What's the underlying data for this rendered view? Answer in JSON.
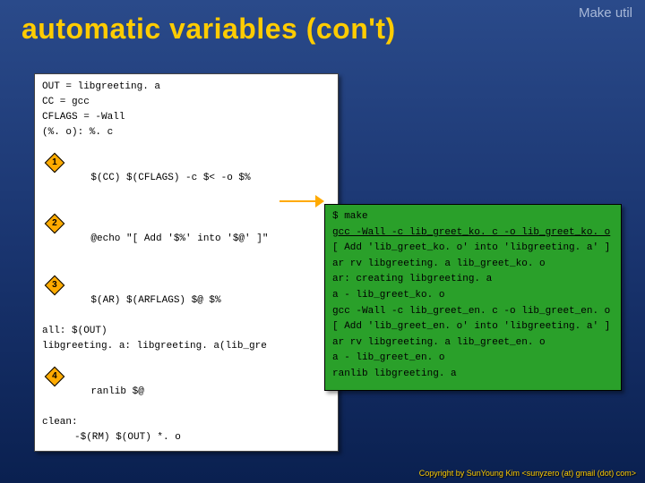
{
  "header": {
    "label": "Make util"
  },
  "title": "automatic variables (con't)",
  "colors": {
    "bg_gradient_top": "#2a4a8a",
    "bg_gradient_bottom": "#0a2050",
    "title_color": "#ffcc00",
    "code_bg": "#ffffff",
    "term_bg": "#2aa02a",
    "callout_bg": "#ffaa00",
    "arrow_color": "#ffaa00"
  },
  "code": {
    "l0": "OUT = libgreeting. a",
    "l1": "CC = gcc",
    "l2": "CFLAGS = -Wall",
    "l3": "(%. o): %. c",
    "l4": "$(CC) $(CFLAGS) -c $< -o $%",
    "l5": "@echo \"[ Add '$%' into '$@' ]\"",
    "l6": "$(AR) $(ARFLAGS) $@ $%",
    "l7": "all: $(OUT)",
    "l8": "libgreeting. a: libgreeting. a(lib_gre",
    "l9": "ranlib $@",
    "l10": "clean:",
    "l11": "-$(RM) $(OUT) *. o"
  },
  "callouts": {
    "c1": "1",
    "c2": "2",
    "c3": "3",
    "c4": "4"
  },
  "term": {
    "t0": "$ make",
    "t1": "gcc -Wall -c lib_greet_ko. c -o lib_greet_ko. o",
    "t2": "[ Add 'lib_greet_ko. o' into 'libgreeting. a' ]",
    "t3": "ar rv libgreeting. a lib_greet_ko. o",
    "t4": "ar: creating libgreeting. a",
    "t5": "a - lib_greet_ko. o",
    "t6": "gcc -Wall -c lib_greet_en. c -o lib_greet_en. o",
    "t7": "[ Add 'lib_greet_en. o' into 'libgreeting. a' ]",
    "t8": "ar rv libgreeting. a lib_greet_en. o",
    "t9": "a - lib_greet_en. o",
    "t10": "ranlib libgreeting. a"
  },
  "footer": "Copyright by SunYoung Kim <sunyzero (at) gmail (dot) com>"
}
